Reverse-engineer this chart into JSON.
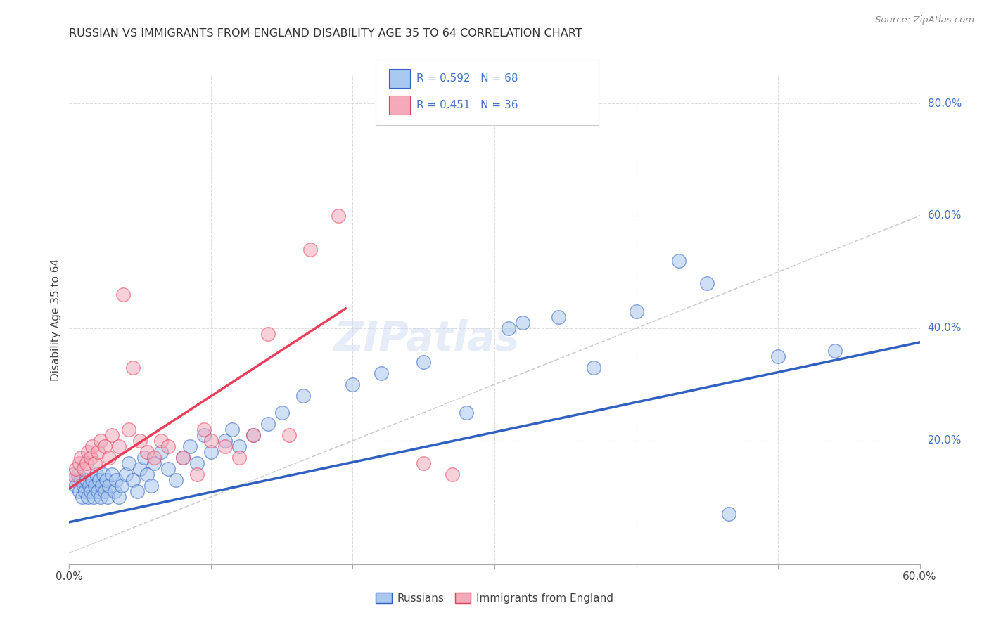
{
  "title": "RUSSIAN VS IMMIGRANTS FROM ENGLAND DISABILITY AGE 35 TO 64 CORRELATION CHART",
  "source": "Source: ZipAtlas.com",
  "ylabel": "Disability Age 35 to 64",
  "xlim": [
    0.0,
    0.6
  ],
  "ylim": [
    -0.02,
    0.85
  ],
  "xticks": [
    0.0,
    0.1,
    0.2,
    0.3,
    0.4,
    0.5,
    0.6
  ],
  "xtick_labels": [
    "0.0%",
    "",
    "",
    "",
    "",
    "",
    "60.0%"
  ],
  "yticks_right": [
    0.2,
    0.4,
    0.6,
    0.8
  ],
  "ytick_labels_right": [
    "20.0%",
    "40.0%",
    "60.0%",
    "80.0%"
  ],
  "color_blue": "#A8C8F0",
  "color_pink": "#F4AABB",
  "line_blue": "#3060C0",
  "line_pink": "#E8405A",
  "diag_color": "#BBBBBB",
  "watermark": "ZIPatlas",
  "blue_line": [
    [
      0.0,
      0.055
    ],
    [
      0.6,
      0.375
    ]
  ],
  "pink_line": [
    [
      0.0,
      0.115
    ],
    [
      0.195,
      0.435
    ]
  ],
  "blue_scatter": [
    [
      0.003,
      0.13
    ],
    [
      0.005,
      0.12
    ],
    [
      0.006,
      0.14
    ],
    [
      0.007,
      0.11
    ],
    [
      0.008,
      0.13
    ],
    [
      0.009,
      0.1
    ],
    [
      0.01,
      0.12
    ],
    [
      0.011,
      0.11
    ],
    [
      0.012,
      0.13
    ],
    [
      0.013,
      0.1
    ],
    [
      0.014,
      0.12
    ],
    [
      0.015,
      0.11
    ],
    [
      0.016,
      0.13
    ],
    [
      0.017,
      0.1
    ],
    [
      0.018,
      0.12
    ],
    [
      0.019,
      0.14
    ],
    [
      0.02,
      0.11
    ],
    [
      0.021,
      0.13
    ],
    [
      0.022,
      0.1
    ],
    [
      0.023,
      0.12
    ],
    [
      0.024,
      0.14
    ],
    [
      0.025,
      0.11
    ],
    [
      0.026,
      0.13
    ],
    [
      0.027,
      0.1
    ],
    [
      0.028,
      0.12
    ],
    [
      0.03,
      0.14
    ],
    [
      0.032,
      0.11
    ],
    [
      0.033,
      0.13
    ],
    [
      0.035,
      0.1
    ],
    [
      0.037,
      0.12
    ],
    [
      0.04,
      0.14
    ],
    [
      0.042,
      0.16
    ],
    [
      0.045,
      0.13
    ],
    [
      0.048,
      0.11
    ],
    [
      0.05,
      0.15
    ],
    [
      0.053,
      0.17
    ],
    [
      0.055,
      0.14
    ],
    [
      0.058,
      0.12
    ],
    [
      0.06,
      0.16
    ],
    [
      0.065,
      0.18
    ],
    [
      0.07,
      0.15
    ],
    [
      0.075,
      0.13
    ],
    [
      0.08,
      0.17
    ],
    [
      0.085,
      0.19
    ],
    [
      0.09,
      0.16
    ],
    [
      0.095,
      0.21
    ],
    [
      0.1,
      0.18
    ],
    [
      0.11,
      0.2
    ],
    [
      0.115,
      0.22
    ],
    [
      0.12,
      0.19
    ],
    [
      0.13,
      0.21
    ],
    [
      0.14,
      0.23
    ],
    [
      0.15,
      0.25
    ],
    [
      0.165,
      0.28
    ],
    [
      0.2,
      0.3
    ],
    [
      0.22,
      0.32
    ],
    [
      0.25,
      0.34
    ],
    [
      0.28,
      0.25
    ],
    [
      0.31,
      0.4
    ],
    [
      0.32,
      0.41
    ],
    [
      0.345,
      0.42
    ],
    [
      0.37,
      0.33
    ],
    [
      0.4,
      0.43
    ],
    [
      0.45,
      0.48
    ],
    [
      0.465,
      0.07
    ],
    [
      0.5,
      0.35
    ],
    [
      0.54,
      0.36
    ],
    [
      0.43,
      0.52
    ]
  ],
  "pink_scatter": [
    [
      0.003,
      0.14
    ],
    [
      0.005,
      0.15
    ],
    [
      0.007,
      0.16
    ],
    [
      0.008,
      0.17
    ],
    [
      0.01,
      0.15
    ],
    [
      0.012,
      0.16
    ],
    [
      0.013,
      0.18
    ],
    [
      0.015,
      0.17
    ],
    [
      0.016,
      0.19
    ],
    [
      0.018,
      0.16
    ],
    [
      0.02,
      0.18
    ],
    [
      0.022,
      0.2
    ],
    [
      0.025,
      0.19
    ],
    [
      0.028,
      0.17
    ],
    [
      0.03,
      0.21
    ],
    [
      0.035,
      0.19
    ],
    [
      0.038,
      0.46
    ],
    [
      0.042,
      0.22
    ],
    [
      0.045,
      0.33
    ],
    [
      0.05,
      0.2
    ],
    [
      0.055,
      0.18
    ],
    [
      0.06,
      0.17
    ],
    [
      0.065,
      0.2
    ],
    [
      0.07,
      0.19
    ],
    [
      0.08,
      0.17
    ],
    [
      0.09,
      0.14
    ],
    [
      0.095,
      0.22
    ],
    [
      0.1,
      0.2
    ],
    [
      0.11,
      0.19
    ],
    [
      0.12,
      0.17
    ],
    [
      0.13,
      0.21
    ],
    [
      0.14,
      0.39
    ],
    [
      0.155,
      0.21
    ],
    [
      0.17,
      0.54
    ],
    [
      0.19,
      0.6
    ],
    [
      0.25,
      0.16
    ],
    [
      0.27,
      0.14
    ]
  ]
}
